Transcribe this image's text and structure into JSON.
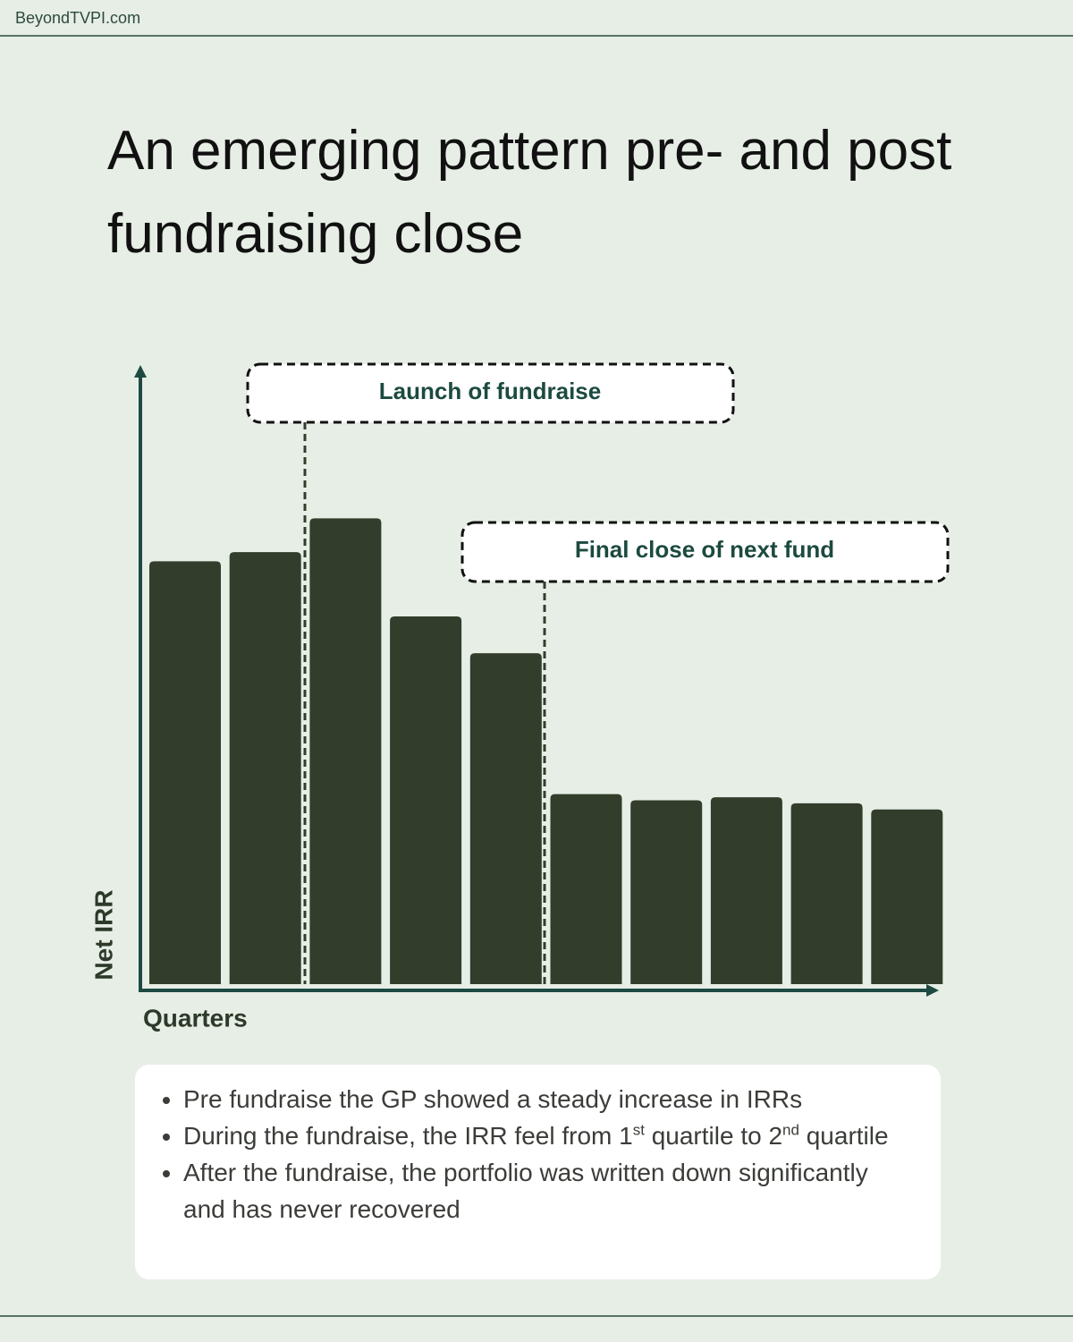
{
  "header": {
    "site": "BeyondTVPI.com"
  },
  "chart_data": {
    "type": "bar",
    "title": "An emerging pattern pre- and post fundraising close",
    "x_label": "Quarters",
    "y_label": "Net IRR",
    "categories": [
      null,
      null,
      null,
      null,
      null,
      null,
      null,
      null,
      null,
      null
    ],
    "values": [
      69,
      70.5,
      76,
      60,
      54,
      31,
      30,
      30.5,
      29.5,
      28.5
    ],
    "color": "#333d2b",
    "ylim": [
      0,
      100
    ],
    "annotations": [
      "Launch of fundraise",
      "Final close of next fund"
    ]
  },
  "notes": [
    "Pre fundraise the GP showed a steady increase in IRRs",
    [
      "During the fundraise, the IRR feel from 1",
      "st",
      " quartile to 2",
      "nd",
      " quartile"
    ],
    "After the fundraise, the portfolio was written down significantly and has never recovered"
  ]
}
